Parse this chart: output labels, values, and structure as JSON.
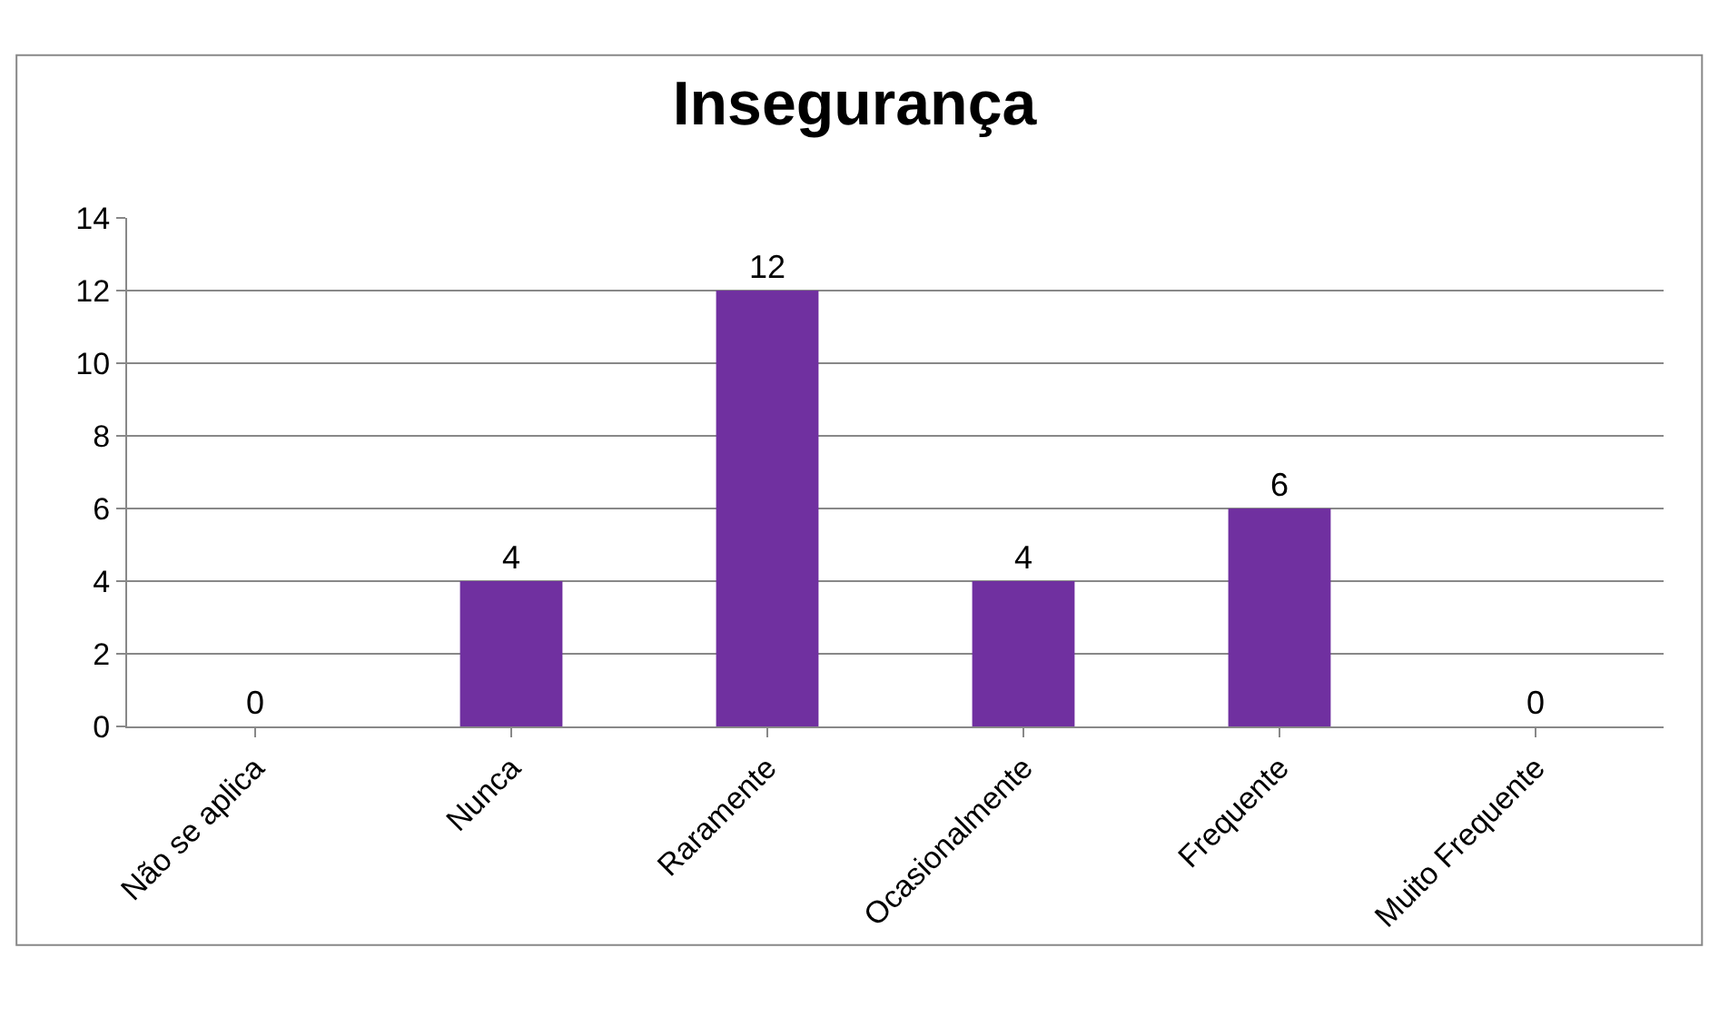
{
  "chart_data": {
    "type": "bar",
    "title": "Insegurança",
    "categories": [
      "Não se aplica",
      "Nunca",
      "Raramente",
      "Ocasionalmente",
      "Frequente",
      "Muito Frequente"
    ],
    "values": [
      0,
      4,
      12,
      4,
      6,
      0
    ],
    "color": "#7030a0",
    "ylim": [
      0,
      14
    ],
    "yticks": [
      0,
      2,
      4,
      6,
      8,
      10,
      12,
      14
    ],
    "grid": "y",
    "data_labels": true
  }
}
